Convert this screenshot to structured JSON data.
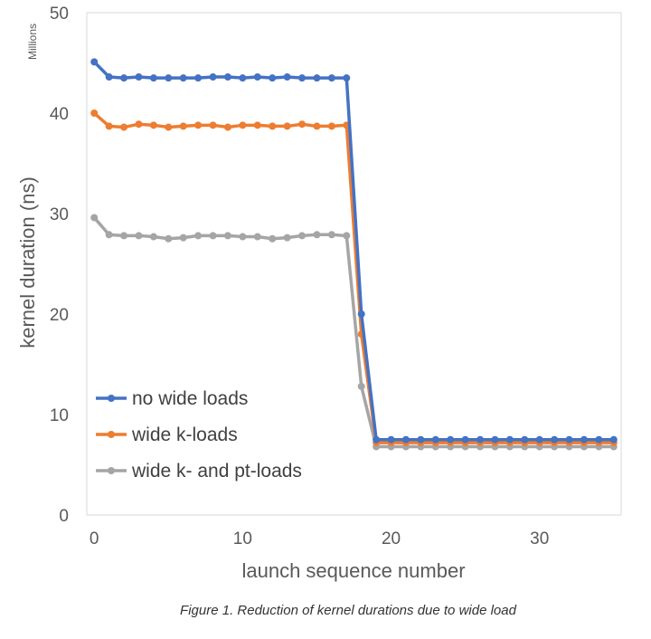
{
  "chart_data": {
    "type": "line",
    "title": "",
    "caption": "Figure 1. Reduction of kernel durations due to wide load",
    "xlabel": "launch sequence number",
    "ylabel": "kernel duration (ns)",
    "units_label": "Millions",
    "xlim": [
      -0.5,
      35.5
    ],
    "ylim": [
      0,
      50
    ],
    "x_ticks": [
      0,
      10,
      20,
      30
    ],
    "y_ticks": [
      0,
      10,
      20,
      30,
      40,
      50
    ],
    "grid": false,
    "legend_position": "bottom-left",
    "x": [
      0,
      1,
      2,
      3,
      4,
      5,
      6,
      7,
      8,
      9,
      10,
      11,
      12,
      13,
      14,
      15,
      16,
      17,
      18,
      19,
      20,
      21,
      22,
      23,
      24,
      25,
      26,
      27,
      28,
      29,
      30,
      31,
      32,
      33,
      34,
      35
    ],
    "series": [
      {
        "name": "no wide loads",
        "color": "#4472C4",
        "values": [
          45.1,
          43.6,
          43.5,
          43.6,
          43.5,
          43.5,
          43.5,
          43.5,
          43.6,
          43.6,
          43.5,
          43.6,
          43.5,
          43.6,
          43.5,
          43.5,
          43.5,
          43.5,
          20.0,
          7.5,
          7.5,
          7.5,
          7.5,
          7.5,
          7.5,
          7.5,
          7.5,
          7.5,
          7.5,
          7.5,
          7.5,
          7.5,
          7.5,
          7.5,
          7.5,
          7.5
        ]
      },
      {
        "name": "wide k-loads",
        "color": "#ED7D31",
        "values": [
          40.0,
          38.7,
          38.6,
          38.9,
          38.8,
          38.6,
          38.7,
          38.8,
          38.8,
          38.6,
          38.8,
          38.8,
          38.7,
          38.7,
          38.9,
          38.7,
          38.7,
          38.8,
          18.0,
          7.2,
          7.2,
          7.2,
          7.2,
          7.2,
          7.2,
          7.2,
          7.2,
          7.2,
          7.2,
          7.2,
          7.2,
          7.2,
          7.2,
          7.2,
          7.2,
          7.2
        ]
      },
      {
        "name": "wide k- and pt-loads",
        "color": "#A5A5A5",
        "values": [
          29.6,
          27.9,
          27.8,
          27.8,
          27.7,
          27.5,
          27.6,
          27.8,
          27.8,
          27.8,
          27.7,
          27.7,
          27.5,
          27.6,
          27.8,
          27.9,
          27.9,
          27.8,
          12.8,
          6.8,
          6.8,
          6.8,
          6.8,
          6.8,
          6.8,
          6.8,
          6.8,
          6.8,
          6.8,
          6.8,
          6.8,
          6.8,
          6.8,
          6.8,
          6.8,
          6.8
        ]
      }
    ]
  }
}
